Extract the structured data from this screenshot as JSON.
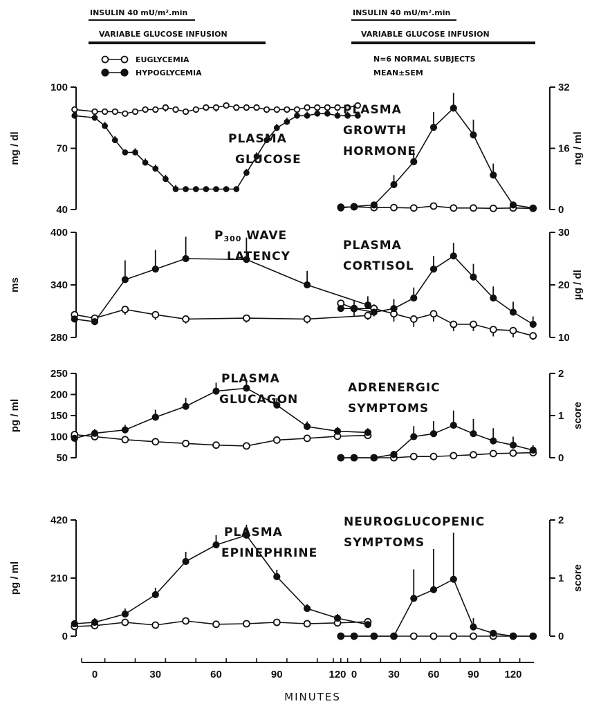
{
  "header": {
    "left": {
      "insulin": "INSULIN 40 mU/m².min",
      "glucose": "VARIABLE GLUCOSE INFUSION"
    },
    "right": {
      "insulin": "INSULIN 40 mU/m².min",
      "glucose": "VARIABLE GLUCOSE INFUSION"
    },
    "study_note": [
      "N=6  NORMAL SUBJECTS",
      "MEAN±SEM"
    ]
  },
  "legend": [
    "EUGLYCEMIA",
    "HYPOGLYCEMIA"
  ],
  "x_axis": {
    "label": "MINUTES",
    "ticks": [
      0,
      30,
      60,
      90,
      120
    ],
    "range": [
      -12,
      135
    ]
  },
  "chart_data": [
    {
      "type": "line",
      "id": "glucose",
      "side": "left",
      "row": 0,
      "title": [
        "PLASMA",
        "GLUCOSE"
      ],
      "ylabel": "mg / dl",
      "yticks": [
        40,
        70,
        100
      ],
      "ylim": [
        40,
        100
      ],
      "series": [
        {
          "name": "EUGLYCEMIA",
          "marker": "open",
          "x": [
            -10,
            0,
            5,
            10,
            15,
            20,
            25,
            30,
            35,
            40,
            45,
            50,
            55,
            60,
            65,
            70,
            75,
            80,
            85,
            90,
            95,
            100,
            105,
            110,
            115,
            120,
            125,
            130
          ],
          "y": [
            89,
            88,
            88,
            88,
            87,
            88,
            89,
            89,
            90,
            89,
            88,
            89,
            90,
            90,
            91,
            90,
            90,
            90,
            89,
            89,
            89,
            89,
            90,
            90,
            90,
            90,
            90,
            91
          ],
          "err": [
            1,
            1,
            1,
            1,
            1,
            1,
            1,
            1,
            2,
            1,
            1,
            1,
            1,
            2,
            1,
            1,
            1,
            1,
            1,
            1,
            1,
            1,
            1,
            1,
            1,
            1,
            1,
            1
          ]
        },
        {
          "name": "HYPOGLYCEMIA",
          "marker": "filled",
          "x": [
            -10,
            0,
            5,
            10,
            15,
            20,
            25,
            30,
            35,
            40,
            45,
            50,
            55,
            60,
            65,
            70,
            75,
            80,
            85,
            90,
            95,
            100,
            105,
            110,
            115,
            120,
            125,
            130
          ],
          "y": [
            86,
            85,
            81,
            74,
            68,
            68,
            63,
            60,
            55,
            50,
            50,
            50,
            50,
            50,
            50,
            50,
            58,
            66,
            74,
            80,
            83,
            86,
            86,
            87,
            87,
            86,
            86,
            86
          ],
          "err": [
            1,
            1,
            2,
            2,
            1,
            2,
            2,
            2,
            2,
            2,
            1,
            1,
            1,
            1,
            1,
            1,
            2,
            2,
            2,
            2,
            2,
            2,
            2,
            2,
            2,
            2,
            2,
            2
          ]
        }
      ]
    },
    {
      "type": "line",
      "id": "growth-hormone",
      "side": "right",
      "row": 0,
      "title": [
        "PLASMA",
        "GROWTH",
        "HORMONE"
      ],
      "ylabel": "ng / ml",
      "yticks": [
        0,
        16,
        32
      ],
      "ylim": [
        0,
        32
      ],
      "series": [
        {
          "name": "EUGLYCEMIA",
          "marker": "open",
          "x": [
            -10,
            0,
            15,
            30,
            45,
            60,
            75,
            90,
            105,
            120,
            135
          ],
          "y": [
            0.6,
            0.7,
            0.5,
            0.5,
            0.4,
            0.9,
            0.4,
            0.4,
            0.3,
            0.4,
            0.3
          ],
          "err": [
            0.3,
            0.3,
            0.3,
            0.3,
            0.2,
            0.4,
            0.2,
            0.2,
            0.2,
            0.2,
            0.2
          ]
        },
        {
          "name": "HYPOGLYCEMIA",
          "marker": "filled",
          "x": [
            -10,
            0,
            15,
            30,
            45,
            60,
            75,
            90,
            105,
            120,
            135
          ],
          "y": [
            0.4,
            0.8,
            1.2,
            6.5,
            12.5,
            21.5,
            26.5,
            19.5,
            9,
            1.2,
            0.4
          ],
          "err": [
            0.3,
            0.5,
            0.8,
            2.5,
            3,
            4,
            4,
            4,
            3,
            0.8,
            0.3
          ]
        }
      ]
    },
    {
      "type": "line",
      "id": "p300",
      "side": "left",
      "row": 1,
      "title": [
        "P300 WAVE",
        "LATENCY"
      ],
      "title_sub": "300",
      "ylabel": "ms",
      "yticks": [
        280,
        340,
        400
      ],
      "ylim": [
        280,
        400
      ],
      "series": [
        {
          "name": "EUGLYCEMIA",
          "marker": "open",
          "x": [
            -10,
            0,
            15,
            30,
            45,
            75,
            105,
            135
          ],
          "y": [
            306,
            302,
            312,
            306,
            301,
            302,
            301,
            305
          ],
          "err": [
            5,
            5,
            6,
            6,
            5,
            5,
            5,
            5
          ]
        },
        {
          "name": "HYPOGLYCEMIA",
          "marker": "filled",
          "x": [
            -10,
            0,
            15,
            30,
            45,
            75,
            105,
            135
          ],
          "y": [
            301,
            298,
            346,
            358,
            370,
            369,
            340,
            317
          ],
          "err": [
            5,
            6,
            22,
            22,
            25,
            25,
            16,
            10
          ]
        }
      ]
    },
    {
      "type": "line",
      "id": "cortisol",
      "side": "right",
      "row": 1,
      "title": [
        "PLASMA",
        "CORTISOL"
      ],
      "ylabel": "µg / dl",
      "yticks": [
        10,
        20,
        30
      ],
      "ylim": [
        10,
        30
      ],
      "series": [
        {
          "name": "EUGLYCEMIA",
          "marker": "open",
          "x": [
            -10,
            0,
            15,
            30,
            45,
            60,
            75,
            90,
            105,
            120,
            135
          ],
          "y": [
            16.5,
            15.5,
            15.5,
            14.5,
            13.5,
            14.5,
            12.5,
            12.5,
            11.5,
            11.3,
            10.3
          ],
          "err": [
            1.5,
            1.5,
            1.5,
            1.5,
            1.5,
            1.5,
            1.3,
            1.3,
            1.3,
            1.3,
            0.8
          ]
        },
        {
          "name": "HYPOGLYCEMIA",
          "marker": "filled",
          "x": [
            -10,
            0,
            15,
            30,
            45,
            60,
            75,
            90,
            105,
            120,
            135
          ],
          "y": [
            15.5,
            15.5,
            14.8,
            15.5,
            17.5,
            23,
            25.5,
            21.5,
            17.5,
            14.8,
            12.5
          ],
          "err": [
            1.5,
            1.5,
            1.5,
            1.8,
            2,
            2.5,
            2.5,
            2.5,
            2.2,
            2,
            1.5
          ]
        }
      ]
    },
    {
      "type": "line",
      "id": "glucagon",
      "side": "left",
      "row": 2,
      "title": [
        "PLASMA",
        "GLUCAGON"
      ],
      "ylabel": "pg / ml",
      "yticks": [
        50,
        100,
        150,
        200,
        250
      ],
      "ylim": [
        50,
        250
      ],
      "series": [
        {
          "name": "EUGLYCEMIA",
          "marker": "open",
          "x": [
            -10,
            0,
            15,
            30,
            45,
            60,
            75,
            90,
            105,
            120,
            135
          ],
          "y": [
            105,
            100,
            93,
            88,
            84,
            80,
            78,
            92,
            96,
            101,
            103
          ],
          "err": [
            8,
            8,
            7,
            7,
            7,
            7,
            7,
            7,
            8,
            8,
            8
          ]
        },
        {
          "name": "HYPOGLYCEMIA",
          "marker": "filled",
          "x": [
            -10,
            0,
            15,
            30,
            45,
            60,
            75,
            90,
            105,
            120,
            135
          ],
          "y": [
            96,
            108,
            116,
            146,
            172,
            208,
            215,
            175,
            124,
            113,
            110
          ],
          "err": [
            8,
            10,
            12,
            18,
            20,
            20,
            20,
            16,
            12,
            10,
            10
          ]
        }
      ]
    },
    {
      "type": "line",
      "id": "adrenergic",
      "side": "right",
      "row": 2,
      "title": [
        "ADRENERGIC",
        "SYMPTOMS"
      ],
      "ylabel": "score",
      "yticks": [
        0,
        1,
        2
      ],
      "ylim": [
        0,
        2
      ],
      "series": [
        {
          "name": "EUGLYCEMIA",
          "marker": "open",
          "x": [
            -10,
            0,
            15,
            30,
            45,
            60,
            75,
            90,
            105,
            120,
            135
          ],
          "y": [
            0,
            0,
            0,
            0,
            0.03,
            0.03,
            0.05,
            0.07,
            0.1,
            0.11,
            0.12
          ],
          "err": [
            0,
            0,
            0,
            0,
            0.03,
            0.03,
            0.04,
            0.05,
            0.05,
            0.05,
            0.05
          ]
        },
        {
          "name": "HYPOGLYCEMIA",
          "marker": "filled",
          "x": [
            -10,
            0,
            15,
            30,
            45,
            60,
            75,
            90,
            105,
            120,
            135
          ],
          "y": [
            0,
            0,
            0,
            0.08,
            0.5,
            0.57,
            0.77,
            0.57,
            0.4,
            0.3,
            0.18
          ],
          "err": [
            0,
            0,
            0,
            0.05,
            0.25,
            0.3,
            0.35,
            0.35,
            0.3,
            0.2,
            0.12
          ]
        }
      ]
    },
    {
      "type": "line",
      "id": "epinephrine",
      "side": "left",
      "row": 3,
      "title": [
        "PLASMA",
        "EPINEPHRINE"
      ],
      "ylabel": "pg / ml",
      "yticks": [
        0,
        210,
        420
      ],
      "ylim": [
        0,
        420
      ],
      "series": [
        {
          "name": "EUGLYCEMIA",
          "marker": "open",
          "x": [
            -10,
            0,
            15,
            30,
            45,
            60,
            75,
            90,
            105,
            120,
            135
          ],
          "y": [
            35,
            38,
            50,
            40,
            55,
            43,
            45,
            50,
            45,
            48,
            52
          ],
          "err": [
            12,
            12,
            12,
            12,
            12,
            12,
            12,
            12,
            12,
            12,
            12
          ]
        },
        {
          "name": "HYPOGLYCEMIA",
          "marker": "filled",
          "x": [
            -10,
            0,
            15,
            30,
            45,
            60,
            75,
            90,
            105,
            120,
            135
          ],
          "y": [
            45,
            50,
            80,
            150,
            270,
            330,
            365,
            215,
            100,
            65,
            42
          ],
          "err": [
            12,
            15,
            20,
            25,
            35,
            35,
            38,
            25,
            15,
            15,
            12
          ]
        }
      ]
    },
    {
      "type": "line",
      "id": "neuroglucopenic",
      "side": "right",
      "row": 3,
      "title": [
        "NEUROGLUCOPENIC",
        "SYMPTOMS"
      ],
      "ylabel": "score",
      "yticks": [
        0,
        1,
        2
      ],
      "ylim": [
        0,
        2
      ],
      "series": [
        {
          "name": "EUGLYCEMIA",
          "marker": "open",
          "x": [
            -10,
            0,
            15,
            30,
            45,
            60,
            75,
            90,
            105,
            120,
            135
          ],
          "y": [
            0,
            0,
            0,
            0,
            0,
            0,
            0,
            0,
            0,
            0,
            0
          ],
          "err": [
            0,
            0,
            0,
            0,
            0,
            0,
            0,
            0,
            0,
            0,
            0
          ]
        },
        {
          "name": "HYPOGLYCEMIA",
          "marker": "filled",
          "x": [
            -10,
            0,
            15,
            30,
            45,
            60,
            75,
            90,
            105,
            120,
            135
          ],
          "y": [
            0,
            0,
            0,
            0,
            0.65,
            0.8,
            0.98,
            0.16,
            0.05,
            0,
            0
          ],
          "err": [
            0,
            0,
            0,
            0,
            0.5,
            0.7,
            0.8,
            0.15,
            0.05,
            0,
            0
          ]
        }
      ]
    }
  ]
}
